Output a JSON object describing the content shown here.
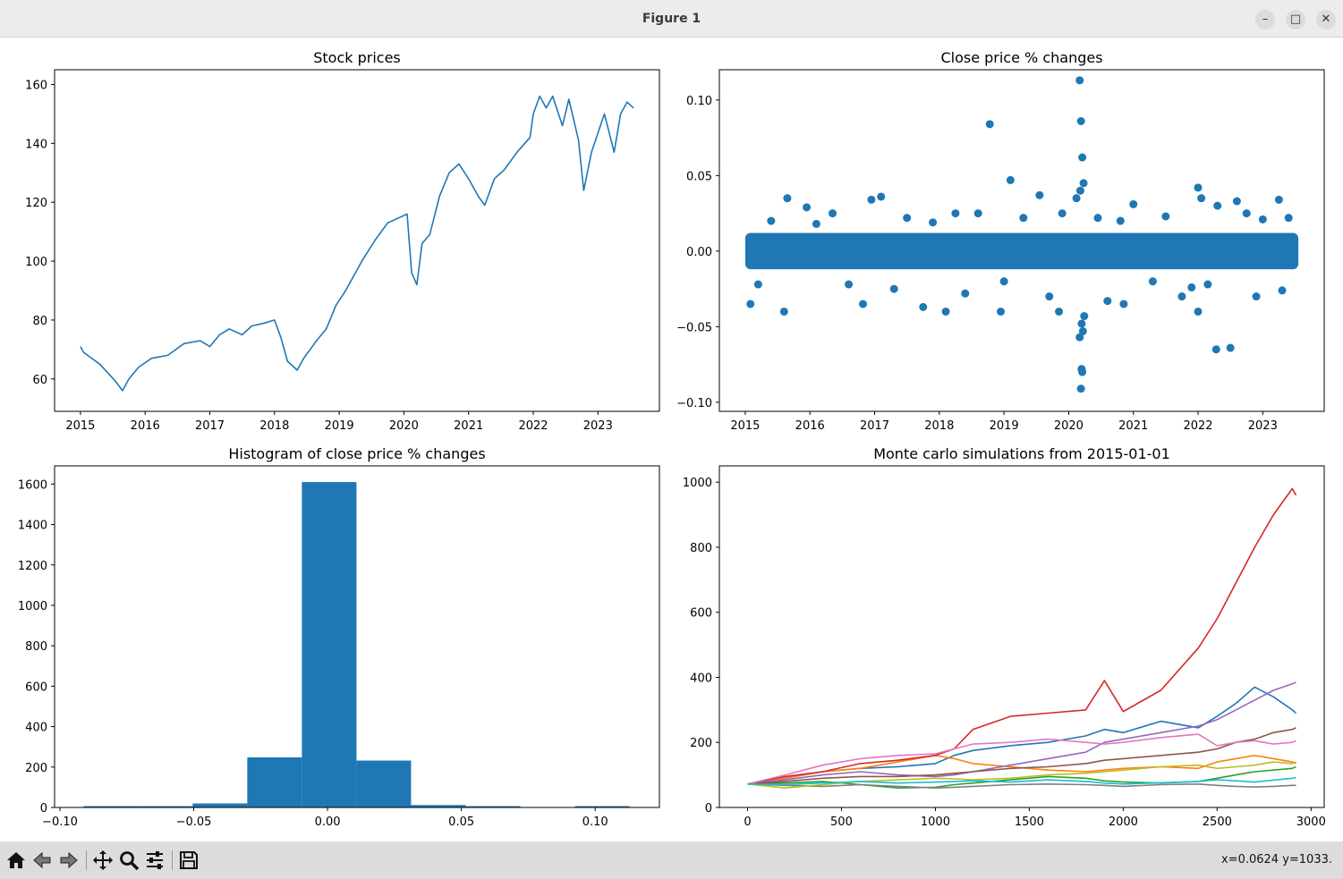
{
  "window": {
    "title": "Figure 1",
    "minimize_icon": "minimize-icon",
    "maximize_icon": "maximize-icon",
    "close_icon": "close-icon"
  },
  "toolbar": {
    "icons": [
      "home-icon",
      "back-icon",
      "forward-icon",
      "pan-icon",
      "zoom-icon",
      "configure-subplots-icon",
      "save-icon"
    ],
    "coords": "x=0.0624 y=1033."
  },
  "colors": {
    "series": [
      "#1f77b4",
      "#ff7f0e",
      "#2ca02c",
      "#d62728",
      "#9467bd",
      "#8c564b",
      "#e377c2",
      "#7f7f7f",
      "#bcbd22",
      "#17becf"
    ]
  },
  "chart_data": [
    {
      "type": "line",
      "title": "Stock prices",
      "xlabel": "",
      "ylabel": "",
      "xticks": [
        "2015",
        "2016",
        "2017",
        "2018",
        "2019",
        "2020",
        "2021",
        "2022",
        "2023"
      ],
      "yticks": [
        "60",
        "80",
        "100",
        "120",
        "140",
        "160"
      ],
      "xlim": [
        2014.6,
        2023.95
      ],
      "ylim": [
        49,
        165
      ],
      "grid": false,
      "series": [
        {
          "x": [
            2015.0,
            2015.05,
            2015.3,
            2015.55,
            2015.65,
            2015.75,
            2015.9,
            2016.1,
            2016.35,
            2016.6,
            2016.85,
            2017.0,
            2017.15,
            2017.3,
            2017.5,
            2017.65,
            2017.85,
            2018.0,
            2018.1,
            2018.2,
            2018.35,
            2018.45,
            2018.65,
            2018.8,
            2018.95,
            2019.1,
            2019.35,
            2019.55,
            2019.75,
            2019.95,
            2020.05,
            2020.12,
            2020.2,
            2020.28,
            2020.4,
            2020.55,
            2020.7,
            2020.85,
            2021.0,
            2021.15,
            2021.25,
            2021.4,
            2021.55,
            2021.75,
            2021.95,
            2022.0,
            2022.1,
            2022.2,
            2022.3,
            2022.45,
            2022.55,
            2022.7,
            2022.78,
            2022.9,
            2023.1,
            2023.25,
            2023.35,
            2023.45,
            2023.55
          ],
          "values": [
            71,
            69,
            65,
            59,
            56,
            60,
            64,
            67,
            68,
            72,
            73,
            71,
            75,
            77,
            75,
            78,
            79,
            80,
            74,
            66,
            63,
            67,
            73,
            77,
            85,
            90,
            100,
            107,
            113,
            115,
            116,
            96,
            92,
            106,
            109,
            122,
            130,
            133,
            128,
            122,
            119,
            128,
            131,
            137,
            142,
            150,
            156,
            152,
            156,
            146,
            155,
            141,
            124,
            137,
            150,
            137,
            150,
            154,
            152
          ]
        }
      ]
    },
    {
      "type": "scatter",
      "title": "Close price % changes",
      "xlabel": "",
      "ylabel": "",
      "xticks": [
        "2015",
        "2016",
        "2017",
        "2018",
        "2019",
        "2020",
        "2021",
        "2022",
        "2023"
      ],
      "yticks": [
        "0.10",
        "0.05",
        "0.00",
        "−0.05",
        "−0.10"
      ],
      "xlim": [
        2014.6,
        2023.95
      ],
      "ylim": [
        -0.106,
        0.12
      ],
      "grid": false,
      "band": {
        "x_start": 2015.0,
        "x_end": 2023.55,
        "y_low": -0.012,
        "y_high": 0.012
      },
      "points": [
        [
          2015.08,
          -0.035
        ],
        [
          2015.6,
          -0.04
        ],
        [
          2015.65,
          0.035
        ],
        [
          2015.95,
          0.029
        ],
        [
          2016.35,
          0.025
        ],
        [
          2016.82,
          -0.035
        ],
        [
          2016.95,
          0.034
        ],
        [
          2017.1,
          0.036
        ],
        [
          2017.3,
          -0.025
        ],
        [
          2017.75,
          -0.037
        ],
        [
          2018.1,
          -0.04
        ],
        [
          2018.25,
          0.025
        ],
        [
          2018.6,
          0.025
        ],
        [
          2018.78,
          0.084
        ],
        [
          2018.95,
          -0.04
        ],
        [
          2019.1,
          0.047
        ],
        [
          2019.55,
          0.037
        ],
        [
          2019.7,
          -0.03
        ],
        [
          2019.85,
          -0.04
        ],
        [
          2020.12,
          0.035
        ],
        [
          2020.17,
          0.113
        ],
        [
          2020.19,
          0.086
        ],
        [
          2020.21,
          0.062
        ],
        [
          2020.23,
          0.045
        ],
        [
          2020.18,
          0.04
        ],
        [
          2020.2,
          -0.048
        ],
        [
          2020.17,
          -0.057
        ],
        [
          2020.2,
          -0.078
        ],
        [
          2020.21,
          -0.08
        ],
        [
          2020.19,
          -0.091
        ],
        [
          2020.24,
          -0.043
        ],
        [
          2020.22,
          -0.053
        ],
        [
          2020.6,
          -0.033
        ],
        [
          2020.85,
          -0.035
        ],
        [
          2021.0,
          0.031
        ],
        [
          2021.75,
          -0.03
        ],
        [
          2022.0,
          0.042
        ],
        [
          2022.05,
          0.035
        ],
        [
          2022.0,
          -0.04
        ],
        [
          2022.28,
          -0.065
        ],
        [
          2022.5,
          -0.064
        ],
        [
          2022.3,
          0.03
        ],
        [
          2022.6,
          0.033
        ],
        [
          2022.9,
          -0.03
        ],
        [
          2023.25,
          0.034
        ],
        [
          2023.3,
          -0.026
        ],
        [
          2015.4,
          0.02
        ],
        [
          2016.6,
          -0.022
        ],
        [
          2017.5,
          0.022
        ],
        [
          2018.4,
          -0.028
        ],
        [
          2019.3,
          0.022
        ],
        [
          2020.8,
          0.02
        ],
        [
          2021.5,
          0.023
        ],
        [
          2021.9,
          -0.024
        ],
        [
          2022.75,
          0.025
        ],
        [
          2023.4,
          0.022
        ],
        [
          2015.2,
          -0.022
        ],
        [
          2016.1,
          0.018
        ],
        [
          2017.9,
          0.019
        ],
        [
          2019.0,
          -0.02
        ],
        [
          2020.45,
          0.022
        ],
        [
          2021.3,
          -0.02
        ],
        [
          2022.15,
          -0.022
        ],
        [
          2023.0,
          0.021
        ],
        [
          2019.9,
          0.025
        ]
      ]
    },
    {
      "type": "bar",
      "title": "Histogram of close price % changes",
      "xlabel": "",
      "ylabel": "",
      "xticks": [
        "−0.10",
        "−0.05",
        "0.00",
        "0.05",
        "0.10"
      ],
      "yticks": [
        "0",
        "200",
        "400",
        "600",
        "800",
        "1000",
        "1200",
        "1400",
        "1600"
      ],
      "xlim": [
        -0.102,
        0.124
      ],
      "ylim": [
        0,
        1690
      ],
      "grid": false,
      "bin_edges": [
        -0.0912,
        -0.0708,
        -0.0504,
        -0.03,
        -0.0096,
        0.0108,
        0.0312,
        0.0516,
        0.072,
        0.0924,
        0.1128
      ],
      "values": [
        1,
        6,
        20,
        248,
        1610,
        232,
        12,
        3,
        0,
        1
      ]
    },
    {
      "type": "line",
      "title": "Monte carlo simulations from 2015-01-01",
      "xlabel": "",
      "ylabel": "",
      "xticks": [
        "0",
        "500",
        "1000",
        "1500",
        "2000",
        "2500",
        "3000"
      ],
      "yticks": [
        "0",
        "200",
        "400",
        "600",
        "800",
        "1000"
      ],
      "xlim": [
        -150,
        3070
      ],
      "ylim": [
        0,
        1050
      ],
      "grid": false,
      "x": [
        0,
        200,
        400,
        600,
        800,
        1000,
        1100,
        1200,
        1400,
        1600,
        1800,
        1900,
        2000,
        2200,
        2400,
        2500,
        2600,
        2700,
        2800,
        2900,
        2920
      ],
      "series": [
        {
          "values": [
            72,
            90,
            110,
            120,
            125,
            135,
            160,
            175,
            190,
            200,
            220,
            240,
            230,
            265,
            245,
            280,
            320,
            370,
            340,
            300,
            290
          ]
        },
        {
          "values": [
            72,
            90,
            110,
            120,
            140,
            160,
            150,
            135,
            125,
            115,
            110,
            115,
            120,
            125,
            120,
            140,
            150,
            160,
            150,
            140,
            135
          ]
        },
        {
          "values": [
            72,
            75,
            80,
            70,
            60,
            62,
            70,
            75,
            85,
            95,
            90,
            82,
            78,
            75,
            80,
            90,
            100,
            110,
            115,
            120,
            125
          ]
        },
        {
          "values": [
            72,
            95,
            110,
            135,
            145,
            160,
            180,
            240,
            280,
            290,
            300,
            390,
            295,
            360,
            490,
            580,
            690,
            800,
            900,
            980,
            960
          ]
        },
        {
          "values": [
            72,
            85,
            100,
            110,
            100,
            95,
            100,
            110,
            130,
            150,
            170,
            200,
            210,
            230,
            250,
            270,
            300,
            330,
            360,
            380,
            385
          ]
        },
        {
          "values": [
            72,
            80,
            90,
            95,
            95,
            100,
            105,
            110,
            120,
            125,
            135,
            145,
            150,
            160,
            170,
            180,
            200,
            210,
            230,
            240,
            245
          ]
        },
        {
          "values": [
            72,
            100,
            130,
            150,
            160,
            165,
            180,
            195,
            200,
            210,
            200,
            195,
            200,
            215,
            225,
            190,
            200,
            205,
            195,
            200,
            205
          ]
        },
        {
          "values": [
            72,
            68,
            65,
            70,
            65,
            60,
            62,
            65,
            70,
            72,
            70,
            68,
            65,
            70,
            72,
            68,
            65,
            63,
            65,
            68,
            68
          ]
        },
        {
          "values": [
            72,
            60,
            70,
            80,
            85,
            90,
            88,
            85,
            90,
            100,
            105,
            110,
            115,
            125,
            130,
            120,
            125,
            130,
            140,
            135,
            140
          ]
        },
        {
          "values": [
            72,
            70,
            75,
            80,
            75,
            78,
            80,
            82,
            78,
            85,
            80,
            75,
            72,
            76,
            80,
            85,
            82,
            78,
            84,
            90,
            92
          ]
        }
      ]
    }
  ]
}
